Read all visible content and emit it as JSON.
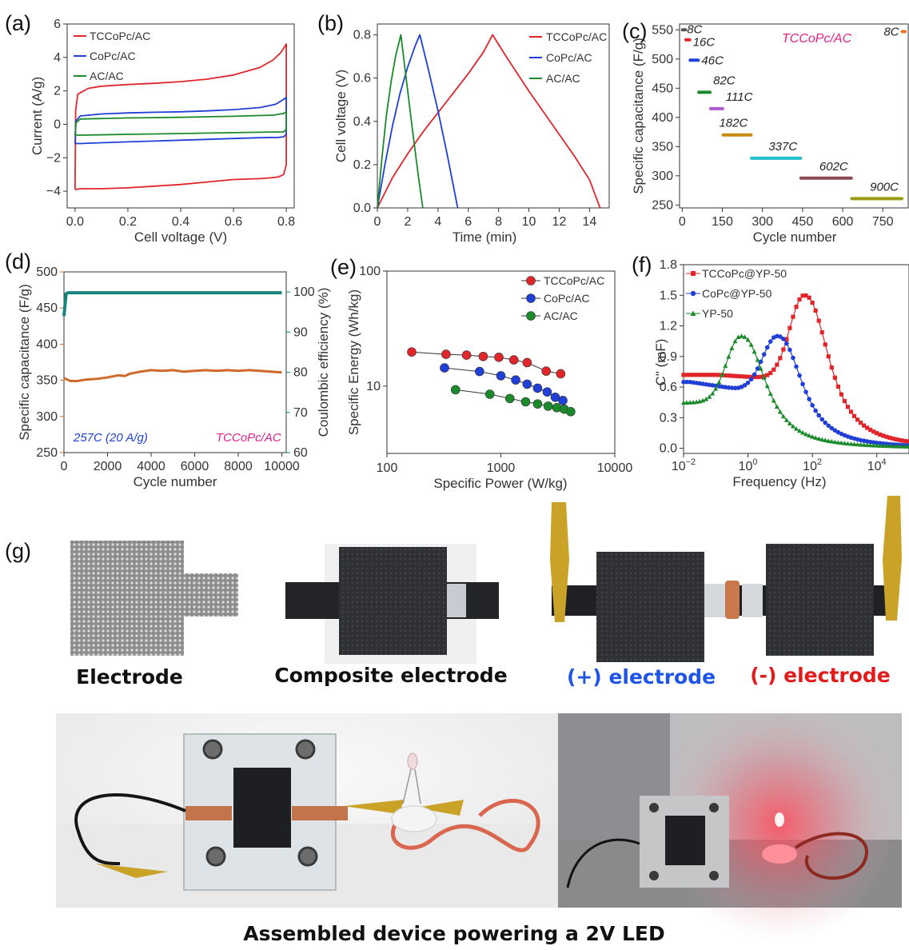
{
  "panels": {
    "a": {
      "label": "(a)",
      "xlabel": "Cell voltage (V)",
      "ylabel": "Current (A/g)",
      "xticks": [
        "0.0",
        "0.2",
        "0.4",
        "0.6",
        "0.8"
      ],
      "yticks": [
        "−4",
        "−2",
        "0",
        "2",
        "4",
        "6"
      ]
    },
    "b": {
      "label": "(b)",
      "xlabel": "Time (min)",
      "ylabel": "Cell voltage (V)",
      "xticks": [
        "0",
        "2",
        "4",
        "6",
        "8",
        "10",
        "12",
        "14"
      ],
      "yticks": [
        "0.0",
        "0.2",
        "0.4",
        "0.6",
        "0.8"
      ]
    },
    "c": {
      "label": "(c)",
      "xlabel": "Cycle number",
      "ylabel": "Specific capacitance (F/g)",
      "xticks": [
        "0",
        "150",
        "300",
        "450",
        "600",
        "750"
      ],
      "yticks": [
        "250",
        "300",
        "350",
        "400",
        "450",
        "500",
        "550"
      ],
      "annotation": "TCCoPc/AC"
    },
    "d": {
      "label": "(d)",
      "xlabel": "Cycle number",
      "ylabel": "Specific capacitance (F/g)",
      "ylabel2": "Coulombic efficiency (%)",
      "xticks": [
        "0",
        "2000",
        "4000",
        "6000",
        "8000",
        "10000"
      ],
      "yticks": [
        "250",
        "300",
        "350",
        "400",
        "450",
        "500"
      ],
      "y2ticks": [
        "60",
        "70",
        "80",
        "90",
        "100"
      ],
      "note_left": "257C (20 A/g)",
      "note_right": "TCCoPc/AC"
    },
    "e": {
      "label": "(e)",
      "xlabel": "Specific Power (W/kg)",
      "ylabel": "Specific Energy (Wh/kg)",
      "xticks": [
        "100",
        "1000",
        "10000"
      ],
      "yticks": [
        "10",
        "100"
      ]
    },
    "f": {
      "label": "(f)",
      "xlabel": "Frequency (Hz)",
      "ylabel": "C\" (mF)",
      "xticks": [
        [
          "10",
          "−2"
        ],
        [
          "10",
          "0"
        ],
        [
          "10",
          "2"
        ],
        [
          "10",
          "4"
        ]
      ],
      "yticks": [
        "0.0",
        "0.3",
        "0.6",
        "0.9",
        "1.2",
        "1.5",
        "1.8"
      ]
    },
    "g": {
      "label": "(g)"
    }
  },
  "photos": {
    "captions": [
      "Electrode",
      "Composite electrode",
      "(+) electrode",
      "(-) electrode"
    ],
    "bottom_caption": "Assembled device powering a 2V LED"
  },
  "colors": {
    "red": "#e0262b",
    "blue": "#1f3fd6",
    "green": "#1b8a2b",
    "magenta": "#e0218a",
    "orange": "#cf6a2a",
    "teal": "#16857b",
    "caption_blue": "#1f55e6",
    "caption_red": "#e21b1b"
  },
  "chart_data": [
    {
      "id": "a",
      "type": "line",
      "xlabel": "Cell voltage (V)",
      "ylabel": "Current (A/g)",
      "xlim": [
        -0.03,
        0.83
      ],
      "ylim": [
        -5,
        6
      ],
      "series": [
        {
          "name": "TCCoPc/AC",
          "color": "#e0262b",
          "x": [
            0.0,
            0.002,
            0.01,
            0.05,
            0.1,
            0.2,
            0.3,
            0.4,
            0.5,
            0.6,
            0.7,
            0.75,
            0.78,
            0.8,
            0.8,
            0.79,
            0.77,
            0.74,
            0.7,
            0.6,
            0.5,
            0.4,
            0.3,
            0.2,
            0.1,
            0.05,
            0.02,
            0.0,
            0.0
          ],
          "y": [
            -3.9,
            0.8,
            1.8,
            2.15,
            2.28,
            2.38,
            2.45,
            2.55,
            2.7,
            2.95,
            3.4,
            3.85,
            4.3,
            4.8,
            -2.4,
            -3.0,
            -3.15,
            -3.2,
            -3.25,
            -3.3,
            -3.45,
            -3.6,
            -3.7,
            -3.8,
            -3.85,
            -3.85,
            -3.85,
            -3.9,
            -3.9
          ]
        },
        {
          "name": "CoPc/AC",
          "color": "#1f3fd6",
          "x": [
            0.0,
            0.003,
            0.02,
            0.1,
            0.2,
            0.3,
            0.4,
            0.5,
            0.6,
            0.7,
            0.76,
            0.8,
            0.8,
            0.79,
            0.77,
            0.7,
            0.6,
            0.5,
            0.4,
            0.3,
            0.2,
            0.1,
            0.02,
            0.0
          ],
          "y": [
            -1.15,
            0.2,
            0.5,
            0.62,
            0.68,
            0.72,
            0.75,
            0.8,
            0.88,
            1.0,
            1.2,
            1.6,
            -0.6,
            -0.75,
            -0.78,
            -0.8,
            -0.85,
            -0.9,
            -0.95,
            -1.0,
            -1.05,
            -1.1,
            -1.15,
            -1.15
          ]
        },
        {
          "name": "AC/AC",
          "color": "#1b8a2b",
          "x": [
            0.0,
            0.004,
            0.02,
            0.2,
            0.4,
            0.6,
            0.75,
            0.79,
            0.8,
            0.8,
            0.79,
            0.6,
            0.4,
            0.2,
            0.02,
            0.0
          ],
          "y": [
            -0.65,
            0.1,
            0.32,
            0.38,
            0.42,
            0.48,
            0.55,
            0.65,
            0.75,
            -0.3,
            -0.45,
            -0.5,
            -0.55,
            -0.6,
            -0.65,
            -0.65
          ]
        }
      ]
    },
    {
      "id": "b",
      "type": "line",
      "xlabel": "Time (min)",
      "ylabel": "Cell voltage (V)",
      "xlim": [
        0,
        15.3
      ],
      "ylim": [
        0,
        0.85
      ],
      "series": [
        {
          "name": "TCCoPc/AC",
          "color": "#e0262b",
          "x": [
            0,
            1,
            2,
            3,
            4,
            5,
            6,
            7,
            7.6,
            8.5,
            10,
            11.5,
            13,
            14,
            14.7
          ],
          "y": [
            0,
            0.14,
            0.25,
            0.35,
            0.44,
            0.53,
            0.62,
            0.72,
            0.8,
            0.7,
            0.54,
            0.39,
            0.24,
            0.13,
            0
          ]
        },
        {
          "name": "CoPc/AC",
          "color": "#1f3fd6",
          "x": [
            0,
            0.5,
            1,
            1.5,
            2,
            2.5,
            2.8,
            3.3,
            4,
            4.6,
            5.3
          ],
          "y": [
            0,
            0.2,
            0.38,
            0.53,
            0.65,
            0.75,
            0.8,
            0.66,
            0.45,
            0.25,
            0
          ]
        },
        {
          "name": "AC/AC",
          "color": "#1b8a2b",
          "x": [
            0,
            0.3,
            0.6,
            0.9,
            1.2,
            1.55,
            1.9,
            2.3,
            2.7,
            3.0
          ],
          "y": [
            0,
            0.23,
            0.43,
            0.58,
            0.7,
            0.8,
            0.6,
            0.37,
            0.15,
            0
          ]
        }
      ]
    },
    {
      "id": "c",
      "type": "scatter",
      "xlabel": "Cycle number",
      "ylabel": "Specific capacitance (F/g)",
      "xlim": [
        -10,
        845
      ],
      "ylim": [
        245,
        560
      ],
      "series": [
        {
          "name": "8C",
          "color": "#555555",
          "x0": 1,
          "x1": 12,
          "y": 550
        },
        {
          "name": "16C",
          "color": "#e0262b",
          "x0": 14,
          "x1": 28,
          "y": 533
        },
        {
          "name": "46C",
          "color": "#1f3fd6",
          "x0": 30,
          "x1": 60,
          "y": 498
        },
        {
          "name": "82C",
          "color": "#1b8a2b",
          "x0": 62,
          "x1": 104,
          "y": 443
        },
        {
          "name": "111C",
          "color": "#b05ad0",
          "x0": 106,
          "x1": 151,
          "y": 415
        },
        {
          "name": "182C",
          "color": "#c88a10",
          "x0": 153,
          "x1": 257,
          "y": 370
        },
        {
          "name": "337C",
          "color": "#20c0c8",
          "x0": 259,
          "x1": 442,
          "y": 330
        },
        {
          "name": "602C",
          "color": "#8a4a50",
          "x0": 444,
          "x1": 632,
          "y": 296
        },
        {
          "name": "900C",
          "color": "#9a9a10",
          "x0": 634,
          "x1": 821,
          "y": 261
        },
        {
          "name": "8C",
          "color": "#f07020",
          "x0": 823,
          "x1": 833,
          "y": 547
        }
      ]
    },
    {
      "id": "d",
      "type": "line",
      "xlabel": "Cycle number",
      "ylabel": "Specific capacitance (F/g)",
      "y2label": "Coulombic efficiency (%)",
      "xlim": [
        0,
        10200
      ],
      "ylim": [
        250,
        500
      ],
      "y2lim": [
        60,
        105
      ],
      "series": [
        {
          "name": "Capacitance",
          "color": "#cf6a2a",
          "axis": "left",
          "x": [
            0,
            300,
            600,
            1000,
            1500,
            2000,
            2500,
            2800,
            3000,
            3500,
            4000,
            4500,
            5000,
            5500,
            6000,
            6500,
            7000,
            7500,
            8000,
            8500,
            9000,
            9500,
            10000
          ],
          "y": [
            353,
            349,
            349,
            351,
            352,
            354,
            357,
            356,
            359,
            362,
            364,
            363,
            364,
            362,
            363,
            364,
            363,
            364,
            363,
            364,
            363,
            362,
            361
          ]
        },
        {
          "name": "Coulombic efficiency",
          "color": "#16857b",
          "axis": "right",
          "x": [
            0,
            100,
            200,
            500,
            1000,
            2000,
            4000,
            6000,
            8000,
            10000
          ],
          "y": [
            94,
            99.6,
            99.8,
            99.8,
            99.8,
            99.8,
            99.8,
            99.8,
            99.8,
            99.8
          ]
        }
      ]
    },
    {
      "id": "e",
      "type": "scatter",
      "xlabel": "Specific Power (W/kg)",
      "ylabel": "Specific Energy (Wh/kg)",
      "xscale": "log",
      "yscale": "log",
      "xlim": [
        100,
        10000
      ],
      "ylim": [
        2.6,
        100
      ],
      "series": [
        {
          "name": "TCCoPc/AC",
          "color": "#e0262b",
          "x": [
            165,
            330,
            500,
            700,
            960,
            1300,
            1700,
            2500,
            3350
          ],
          "y": [
            19.8,
            18.9,
            18.6,
            18.1,
            17.8,
            16.9,
            16.0,
            13.5,
            12.8
          ]
        },
        {
          "name": "CoPc/AC",
          "color": "#1f3fd6",
          "x": [
            320,
            650,
            1000,
            1350,
            1700,
            2100,
            2550,
            3000,
            3500
          ],
          "y": [
            14.4,
            13.4,
            12.3,
            11.3,
            10.4,
            9.6,
            8.9,
            8.0,
            7.5
          ]
        },
        {
          "name": "AC/AC",
          "color": "#1b8a2b",
          "x": [
            400,
            800,
            1200,
            1650,
            2100,
            2600,
            3100,
            3600,
            4100
          ],
          "y": [
            9.3,
            8.5,
            7.8,
            7.3,
            7.0,
            6.7,
            6.5,
            6.3,
            6.0
          ]
        }
      ]
    },
    {
      "id": "f",
      "type": "line",
      "xlabel": "Frequency (Hz)",
      "ylabel": "C\" (mF)",
      "xscale": "log",
      "xlim": [
        0.01,
        100000
      ],
      "ylim": [
        -0.05,
        1.8
      ],
      "series": [
        {
          "name": "TCCoPc@YP-50",
          "color": "#e0262b",
          "peak_x": 55,
          "peak_y": 1.5,
          "base": 0.69,
          "low_end": 0.72
        },
        {
          "name": "CoPc@YP-50",
          "color": "#1f3fd6",
          "peak_x": 8,
          "peak_y": 1.1,
          "base": 0.58,
          "low_end": 0.65
        },
        {
          "name": "YP-50",
          "color": "#1b8a2b",
          "peak_x": 0.6,
          "peak_y": 1.1,
          "base": 0.45,
          "low_end": 0.44
        }
      ]
    }
  ]
}
